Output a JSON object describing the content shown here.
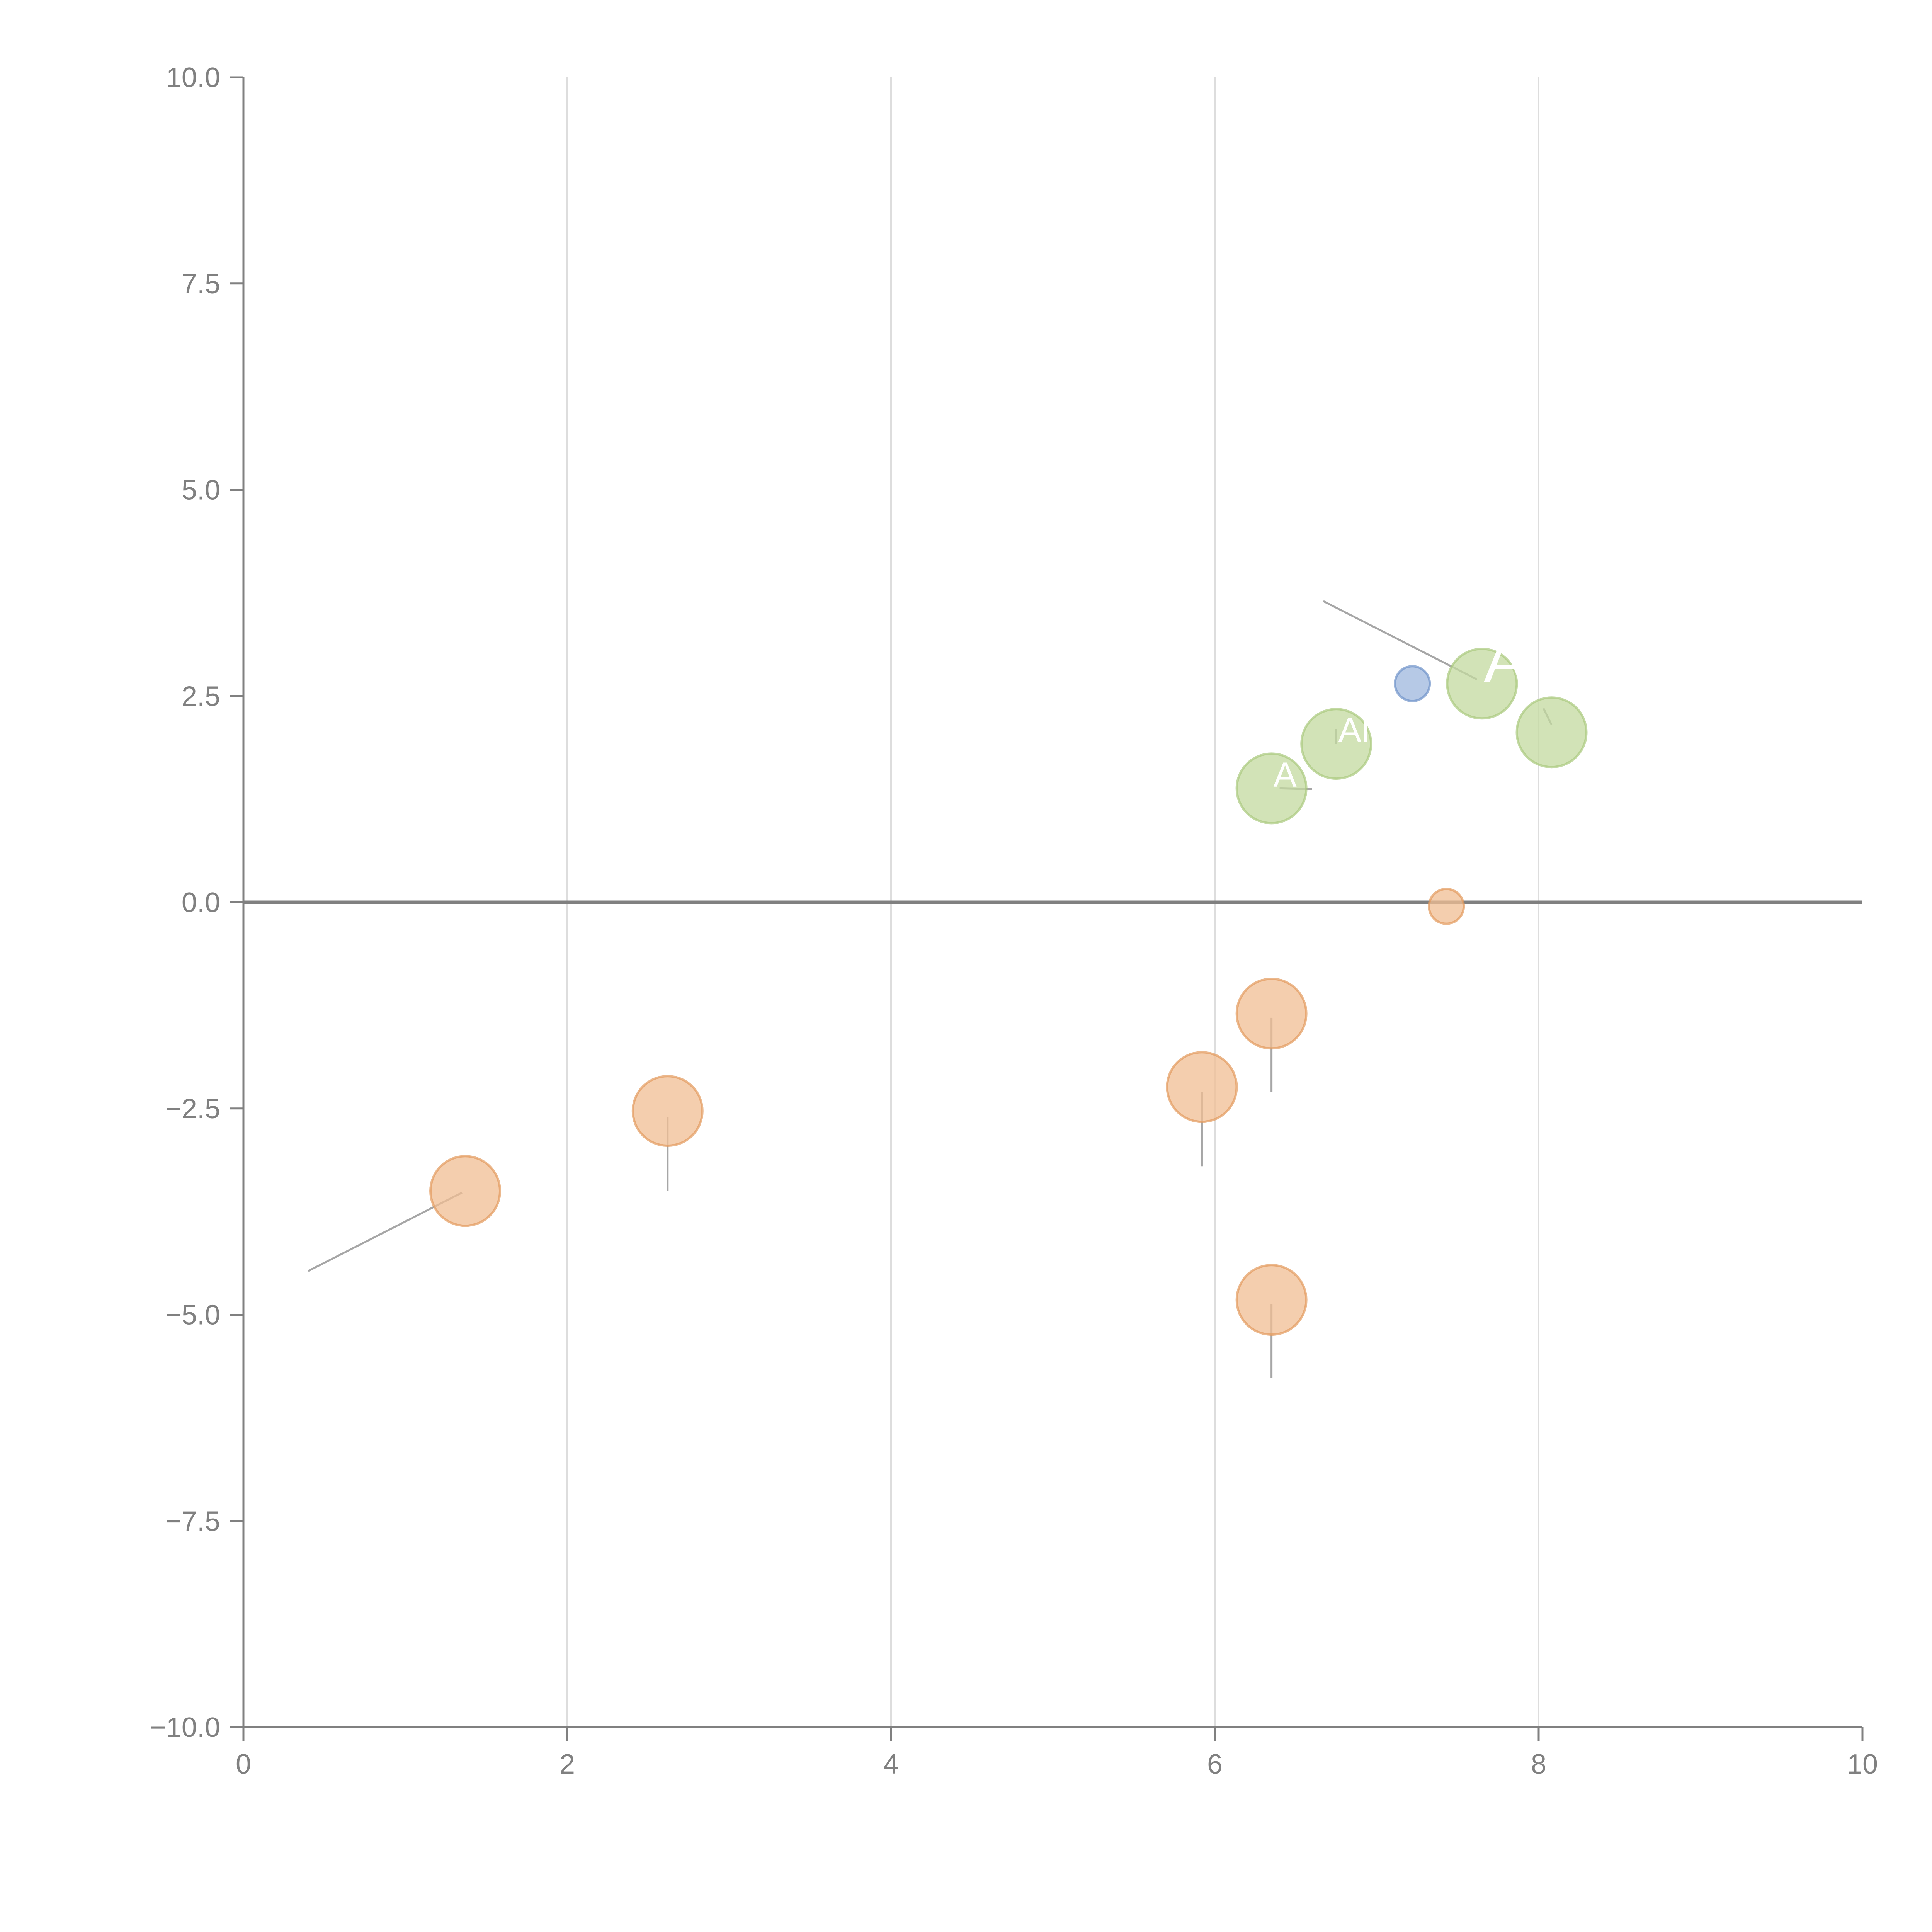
{
  "chart_data": {
    "type": "scatter",
    "title": "",
    "xlabel": "",
    "ylabel": "",
    "xlim": [
      0,
      10
    ],
    "ylim": [
      -10,
      10
    ],
    "x_ticks": [
      0,
      2,
      4,
      6,
      8,
      10
    ],
    "y_ticks": [
      10,
      7.5,
      5,
      2.5,
      0,
      -2.5,
      -5,
      -7.5,
      -10
    ],
    "x_tick_labels": [
      "0",
      "2",
      "4",
      "6",
      "8",
      "10"
    ],
    "y_tick_labels": [
      "10.0",
      "7.5",
      "5.0",
      "2.5",
      "0.0",
      "−2.5",
      "−5.0",
      "−7.5",
      "−10.0"
    ],
    "grid": "vertical",
    "zero_line": true,
    "colors": {
      "green_fill": "#c3da9f",
      "green_stroke": "#a9c97e",
      "orange_fill": "#f0bd93",
      "orange_stroke": "#e39a5c",
      "blue_fill": "#9db7de",
      "blue_stroke": "#6f93c9",
      "axis": "#808080",
      "grid": "#dddddd",
      "leader": "#a6a6a6"
    },
    "series": [
      {
        "name": "green",
        "points": [
          {
            "x": 7.65,
            "y": 2.65,
            "size": 1.0,
            "label": "A",
            "label_size": 1.6
          },
          {
            "x": 8.08,
            "y": 2.06,
            "size": 1.0,
            "label": "",
            "label_size": 1.0
          },
          {
            "x": 6.75,
            "y": 1.92,
            "size": 1.0,
            "label": "ANI",
            "label_size": 0.9
          },
          {
            "x": 6.35,
            "y": 1.38,
            "size": 1.0,
            "label": "A",
            "label_size": 0.9
          }
        ]
      },
      {
        "name": "blue",
        "points": [
          {
            "x": 7.22,
            "y": 2.65,
            "size": 0.5,
            "label": "",
            "label_size": 1.0
          }
        ]
      },
      {
        "name": "orange",
        "points": [
          {
            "x": 7.43,
            "y": -0.05,
            "size": 0.5,
            "label": "",
            "label_size": 1.0
          },
          {
            "x": 6.35,
            "y": -1.35,
            "size": 1.0,
            "label": "",
            "label_size": 1.0
          },
          {
            "x": 5.92,
            "y": -2.24,
            "size": 1.0,
            "label": "",
            "label_size": 1.0
          },
          {
            "x": 2.62,
            "y": -2.53,
            "size": 1.0,
            "label": "",
            "label_size": 1.0
          },
          {
            "x": 1.37,
            "y": -3.5,
            "size": 1.0,
            "label": "",
            "label_size": 1.0
          },
          {
            "x": 6.35,
            "y": -4.82,
            "size": 1.0,
            "label": "",
            "label_size": 1.0
          }
        ]
      }
    ],
    "leader_lines": [
      {
        "x1": 7.62,
        "y1": 2.7,
        "x2": 6.67,
        "y2": 3.65
      },
      {
        "x1": 6.75,
        "y1": 1.92,
        "x2": 6.75,
        "y2": 2.1
      },
      {
        "x1": 8.08,
        "y1": 2.15,
        "x2": 8.03,
        "y2": 2.35
      },
      {
        "x1": 6.4,
        "y1": 1.38,
        "x2": 6.6,
        "y2": 1.37
      },
      {
        "x1": 6.35,
        "y1": -1.4,
        "x2": 6.35,
        "y2": -2.3
      },
      {
        "x1": 5.92,
        "y1": -2.3,
        "x2": 5.92,
        "y2": -3.2
      },
      {
        "x1": 2.62,
        "y1": -2.6,
        "x2": 2.62,
        "y2": -3.5
      },
      {
        "x1": 1.35,
        "y1": -3.52,
        "x2": 0.4,
        "y2": -4.47
      },
      {
        "x1": 6.35,
        "y1": -4.87,
        "x2": 6.35,
        "y2": -5.77
      }
    ]
  }
}
